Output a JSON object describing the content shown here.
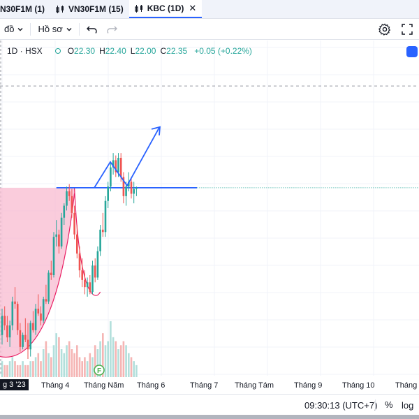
{
  "tabs": [
    {
      "label": "N30F1M (1)",
      "icon": "none",
      "active": false
    },
    {
      "label": "VN30F1M (15)",
      "icon": "candles-icon",
      "active": false
    },
    {
      "label": "KBC (1D)",
      "icon": "candles-icon",
      "active": true,
      "close": "✕"
    }
  ],
  "toolbar": {
    "chart_type_label": "đồ",
    "profile_label": "Hồ sơ",
    "undo_icon": "undo-icon",
    "redo_icon": "redo-icon",
    "settings_icon": "gear-icon",
    "fullscreen_icon": "fullscreen-icon"
  },
  "legend": {
    "symbol": "1D · HSX",
    "open_label": "O",
    "open": "22.30",
    "high_label": "H",
    "high": "22.40",
    "low_label": "L",
    "low": "22.00",
    "close_label": "C",
    "close": "22.35",
    "change": "+0.05 (+0.22%)"
  },
  "colors": {
    "up": "#26a69a",
    "down": "#ef5350",
    "accent": "#2962ff",
    "pattern_fill": "#f8bbd0",
    "pattern_line": "#e91e63"
  },
  "time_axis": {
    "current_label": "g 3 '23",
    "labels": [
      "Tháng 4",
      "Tháng Năm",
      "Tháng 6",
      "Tháng 7",
      "Tháng Tám",
      "Tháng 9",
      "Tháng 10",
      "Tháng 1"
    ]
  },
  "bottom": {
    "time": "09:30:13 (UTC+7)",
    "percent": "%",
    "log": "log"
  },
  "chart_data": {
    "type": "candlestick",
    "symbol": "KBC",
    "interval": "1D",
    "resistance": 22.35,
    "price_range": [
      14.5,
      28.5
    ],
    "dashed_level": 26.6,
    "candles": [
      [
        16.2,
        17.3,
        15.8,
        17.0
      ],
      [
        17.0,
        17.4,
        16.4,
        16.6
      ],
      [
        16.6,
        17.0,
        15.9,
        16.1
      ],
      [
        16.1,
        16.8,
        15.7,
        16.6
      ],
      [
        16.6,
        17.8,
        16.4,
        17.6
      ],
      [
        17.6,
        18.2,
        17.3,
        17.5
      ],
      [
        17.5,
        17.6,
        16.2,
        16.4
      ],
      [
        16.4,
        16.7,
        15.5,
        15.7
      ],
      [
        15.7,
        16.3,
        15.6,
        16.2
      ],
      [
        16.2,
        16.9,
        15.9,
        16.0
      ],
      [
        16.0,
        16.7,
        15.2,
        15.6
      ],
      [
        15.6,
        16.8,
        15.3,
        16.7
      ],
      [
        16.7,
        17.2,
        16.3,
        16.4
      ],
      [
        16.4,
        17.5,
        16.2,
        17.3
      ],
      [
        17.3,
        17.9,
        17.0,
        17.1
      ],
      [
        17.1,
        17.4,
        16.6,
        16.8
      ],
      [
        16.8,
        17.8,
        16.7,
        17.7
      ],
      [
        17.7,
        18.3,
        17.5,
        17.6
      ],
      [
        17.6,
        18.9,
        17.5,
        18.8
      ],
      [
        18.8,
        19.3,
        18.5,
        18.7
      ],
      [
        18.7,
        20.5,
        18.6,
        20.3
      ],
      [
        20.3,
        21.0,
        19.9,
        20.4
      ],
      [
        20.4,
        20.6,
        19.6,
        19.9
      ],
      [
        19.9,
        21.3,
        19.8,
        21.1
      ],
      [
        21.1,
        21.7,
        20.8,
        21.6
      ],
      [
        21.6,
        22.4,
        21.4,
        22.2
      ],
      [
        22.2,
        22.5,
        21.8,
        22.0
      ],
      [
        22.0,
        22.3,
        21.1,
        21.3
      ],
      [
        21.3,
        21.6,
        20.2,
        20.4
      ],
      [
        20.4,
        20.8,
        19.4,
        19.6
      ],
      [
        19.6,
        19.9,
        18.6,
        18.9
      ],
      [
        18.9,
        19.4,
        18.2,
        18.5
      ],
      [
        18.5,
        18.9,
        17.9,
        18.2
      ],
      [
        18.2,
        18.6,
        17.8,
        18.4
      ],
      [
        18.4,
        18.7,
        17.9,
        18.0
      ],
      [
        18.0,
        19.3,
        17.9,
        19.1
      ],
      [
        19.1,
        19.4,
        18.4,
        18.6
      ],
      [
        18.6,
        19.9,
        18.5,
        19.7
      ],
      [
        19.7,
        20.8,
        19.5,
        20.6
      ],
      [
        20.6,
        21.3,
        20.3,
        20.5
      ],
      [
        20.5,
        22.0,
        20.3,
        21.8
      ],
      [
        21.8,
        22.6,
        21.5,
        22.4
      ],
      [
        22.4,
        23.4,
        22.2,
        23.2
      ],
      [
        23.2,
        23.8,
        22.9,
        23.5
      ],
      [
        23.5,
        23.7,
        22.8,
        23.0
      ],
      [
        23.0,
        23.8,
        22.8,
        23.6
      ],
      [
        23.6,
        23.8,
        22.6,
        22.8
      ],
      [
        22.8,
        23.0,
        21.7,
        22.0
      ],
      [
        22.0,
        22.6,
        21.6,
        22.4
      ],
      [
        22.4,
        23.0,
        22.2,
        22.6
      ],
      [
        22.6,
        22.8,
        21.9,
        22.1
      ],
      [
        22.1,
        22.6,
        21.7,
        22.3
      ],
      [
        22.3,
        22.4,
        22.0,
        22.35
      ]
    ],
    "volumes": [
      4,
      3,
      3,
      4,
      5,
      4,
      3,
      3,
      4,
      3,
      3,
      4,
      4,
      5,
      6,
      4,
      7,
      9,
      6,
      5,
      8,
      11,
      10,
      7,
      6,
      8,
      9,
      7,
      6,
      8,
      5,
      4,
      5,
      4,
      6,
      5,
      8,
      7,
      9,
      11,
      8,
      9,
      14,
      10,
      9,
      7,
      8,
      9,
      8,
      6,
      5,
      4,
      3
    ]
  }
}
